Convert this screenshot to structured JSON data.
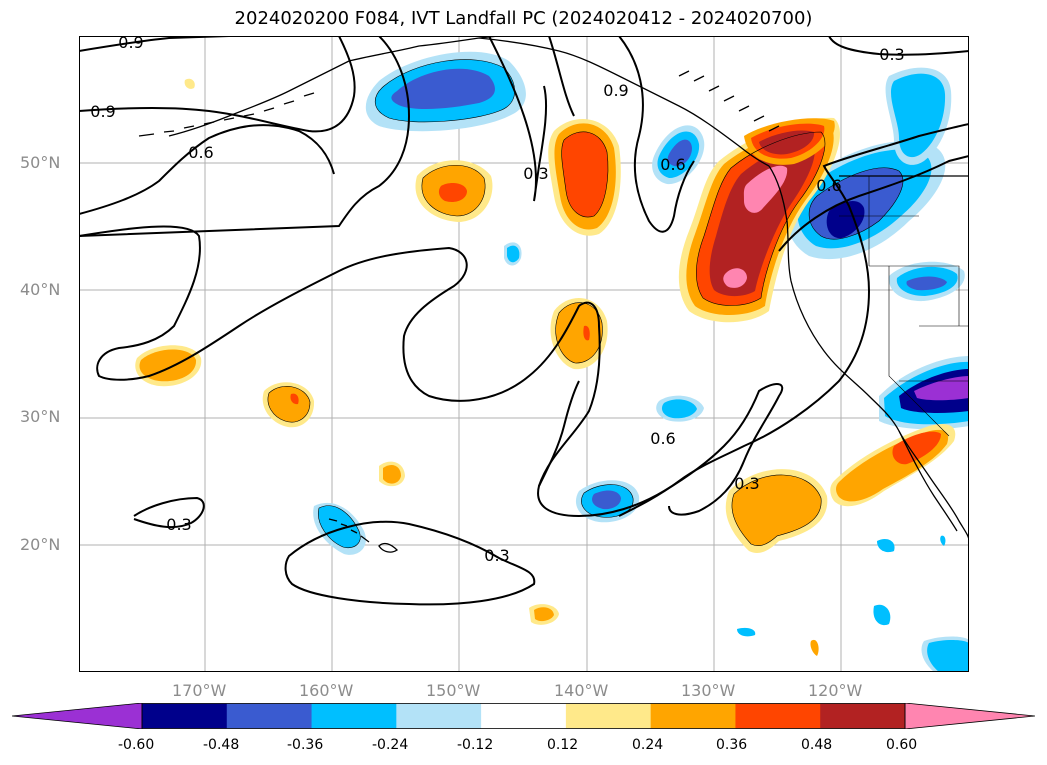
{
  "title": "2024020200 F084, IVT Landfall PC (2024020412 - 2024020700)",
  "lat_labels": [
    "50°N",
    "40°N",
    "30°N",
    "20°N"
  ],
  "lon_labels": [
    "170°W",
    "160°W",
    "150°W",
    "140°W",
    "130°W",
    "120°W"
  ],
  "contour_labels": [
    {
      "text": "0.9"
    },
    {
      "text": "0.9"
    },
    {
      "text": "0.6"
    },
    {
      "text": "0.9"
    },
    {
      "text": "0.3"
    },
    {
      "text": "0.6"
    },
    {
      "text": "0.6"
    },
    {
      "text": "0.3"
    },
    {
      "text": "0.6"
    },
    {
      "text": "0.3"
    },
    {
      "text": "0.3"
    },
    {
      "text": "0.3"
    }
  ],
  "colorbar": {
    "labels": [
      "-0.60",
      "-0.48",
      "-0.36",
      "-0.24",
      "-0.12",
      "0.12",
      "0.24",
      "0.36",
      "0.48",
      "0.60"
    ],
    "colors": [
      "#9b30d4",
      "#00008b",
      "#3a5bd0",
      "#00bfff",
      "#b3e2f7",
      "#ffffff",
      "#ffe98a",
      "#ffa500",
      "#ff4500",
      "#b22222",
      "#ff85b0",
      "#ff85b0"
    ]
  },
  "map_style": {
    "levels": [
      -0.6,
      -0.48,
      -0.36,
      -0.24,
      -0.12,
      0.12,
      0.24,
      0.36,
      0.48,
      0.6
    ],
    "grid": true,
    "extent": {
      "lon": [
        -180,
        -110
      ],
      "lat": [
        10,
        60
      ]
    }
  }
}
